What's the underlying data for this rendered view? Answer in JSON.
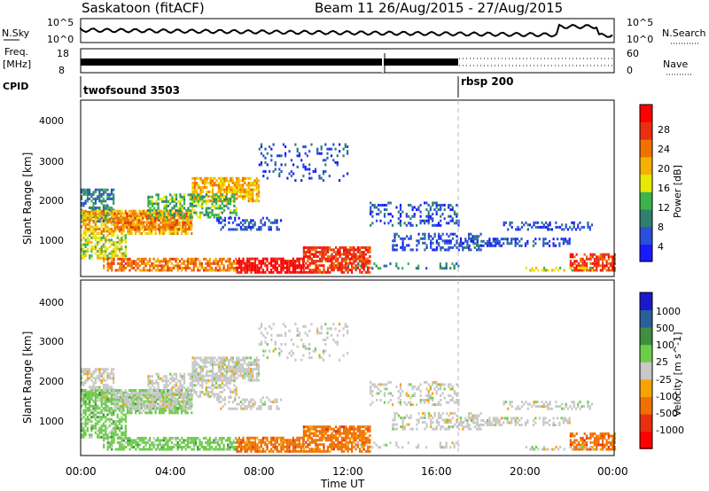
{
  "header": {
    "station": "Saskatoon (fitACF)",
    "beam_date": "Beam 11 26/Aug/2015 - 27/Aug/2015"
  },
  "top_panels": {
    "nsky_label": "N.Sky",
    "nsky_ticks": [
      "10^5",
      "10^0"
    ],
    "nsearch_label": "N.Search",
    "nsearch_ticks": [
      "10^5",
      "10^0"
    ],
    "freq_label_1": "Freq.",
    "freq_label_2": "[MHz]",
    "freq_ticks": [
      "18",
      "8"
    ],
    "nave_label": "Nave",
    "nave_ticks": [
      "60",
      "0"
    ],
    "cpid_label": "CPID",
    "cpid_entries": [
      "twofsound 3503",
      "rbsp 200"
    ]
  },
  "colors": {
    "power_scale": [
      "#1a1aff",
      "#2a4fd8",
      "#2f7f6f",
      "#3cb44b",
      "#e8e800",
      "#f5b000",
      "#f07000",
      "#e83010",
      "#ff0000"
    ],
    "velocity_scale": [
      "#ff0000",
      "#e83010",
      "#f07000",
      "#f5a500",
      "#c8c8c8",
      "#6ccd4a",
      "#3f8f3f",
      "#2a5f9a",
      "#1a1acc"
    ]
  },
  "chart_data": [
    {
      "type": "heatmap",
      "name": "power",
      "ylabel": "Slant Range [km]",
      "yticks": [
        "4000",
        "3000",
        "2000",
        "1000"
      ],
      "ylim": [
        180,
        4500
      ],
      "xlim": [
        "00:00",
        "24:00"
      ],
      "colorbar_label": "Power [dB]",
      "colorbar_ticks": [
        "28",
        "24",
        "20",
        "16",
        "12",
        "8",
        "4"
      ],
      "clim": [
        0,
        30
      ]
    },
    {
      "type": "heatmap",
      "name": "velocity",
      "ylabel": "Slant Range [km]",
      "yticks": [
        "4000",
        "3000",
        "2000",
        "1000"
      ],
      "ylim": [
        180,
        4500
      ],
      "xlim": [
        "00:00",
        "24:00"
      ],
      "colorbar_label": "Velocity [m s^-1]",
      "colorbar_ticks": [
        "1000",
        "500",
        "100",
        "25",
        "-25",
        "-100",
        "-500",
        "-1000"
      ],
      "clim": [
        -1000,
        1000
      ]
    }
  ],
  "xaxis": {
    "ticks": [
      "00:00",
      "04:00",
      "08:00",
      "12:00",
      "16:00",
      "20:00",
      "00:00"
    ],
    "label": "Time UT"
  }
}
